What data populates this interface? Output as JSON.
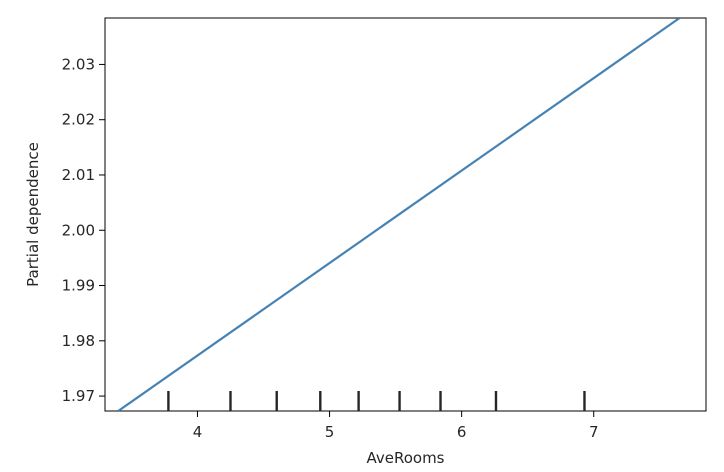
{
  "chart_data": {
    "type": "line",
    "title": "",
    "xlabel": "AveRooms",
    "ylabel": "Partial dependence",
    "xlim": [
      3.3,
      7.85
    ],
    "ylim": [
      1.9673,
      2.0384
    ],
    "x_ticks": [
      4,
      5,
      6,
      7
    ],
    "x_tick_labels": [
      "4",
      "5",
      "6",
      "7"
    ],
    "y_ticks": [
      1.97,
      1.98,
      1.99,
      2.0,
      2.01,
      2.02,
      2.03
    ],
    "y_tick_labels": [
      "1.97",
      "1.98",
      "1.99",
      "2.00",
      "2.01",
      "2.02",
      "2.03"
    ],
    "grid": false,
    "legend": "none",
    "series": [
      {
        "x": [
          3.4,
          7.65
        ],
        "y": [
          1.9673,
          2.0384
        ],
        "color": "#4682b4"
      }
    ],
    "rug_deciles": [
      3.78,
      4.25,
      4.6,
      4.93,
      5.22,
      5.53,
      5.84,
      6.26,
      6.93
    ],
    "rug_color": "#262626"
  }
}
